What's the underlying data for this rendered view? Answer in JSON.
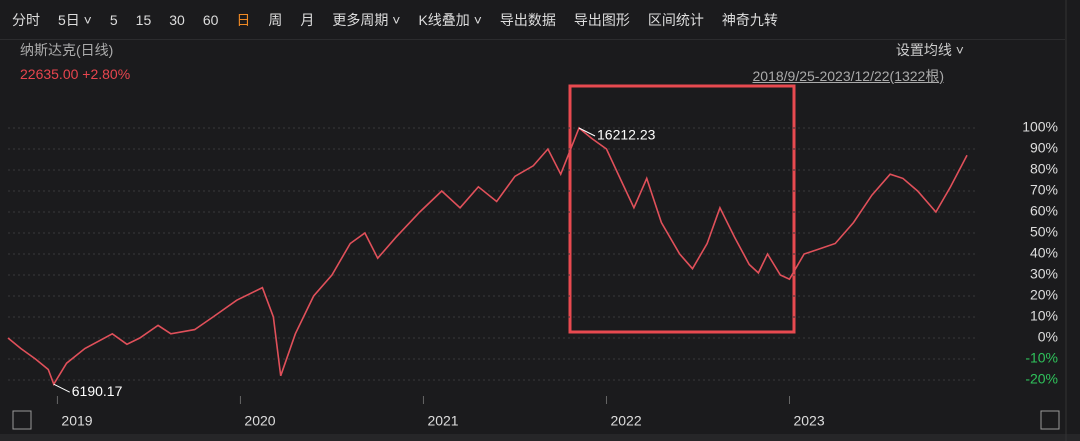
{
  "toolbar": {
    "items": [
      "分时",
      "5日 ˅",
      "5",
      "15",
      "30",
      "60",
      "日",
      "周",
      "月",
      "更多周期 ˅",
      "K线叠加 ˅",
      "导出数据",
      "导出图形",
      "区间统计",
      "神奇九转"
    ],
    "active": 6
  },
  "header": {
    "name": "纳斯达克(日线)",
    "quote": "22635.00 +2.80%",
    "ma_setting": "设置均线 ˅",
    "range": "2018/9/25-2023/12/22(1322根)"
  },
  "chart_data": {
    "type": "line",
    "x": [
      2018.73,
      2018.8,
      2018.88,
      2018.95,
      2018.98,
      2019.05,
      2019.15,
      2019.3,
      2019.38,
      2019.45,
      2019.55,
      2019.62,
      2019.75,
      2019.85,
      2019.98,
      2020.12,
      2020.18,
      2020.22,
      2020.3,
      2020.4,
      2020.5,
      2020.6,
      2020.68,
      2020.75,
      2020.85,
      2020.98,
      2021.1,
      2021.2,
      2021.3,
      2021.4,
      2021.5,
      2021.6,
      2021.68,
      2021.75,
      2021.85,
      2021.92,
      2022.0,
      2022.08,
      2022.15,
      2022.22,
      2022.3,
      2022.4,
      2022.47,
      2022.55,
      2022.62,
      2022.7,
      2022.78,
      2022.83,
      2022.88,
      2022.95,
      2023.0,
      2023.08,
      2023.15,
      2023.25,
      2023.35,
      2023.45,
      2023.55,
      2023.62,
      2023.7,
      2023.8,
      2023.88,
      2023.97
    ],
    "series": [
      {
        "name": "纳斯达克",
        "color": "#e0505a",
        "values": [
          0,
          -5,
          -10,
          -15,
          -22,
          -12,
          -5,
          2,
          -3,
          0,
          6,
          2,
          4,
          10,
          18,
          24,
          10,
          -18,
          2,
          20,
          30,
          45,
          50,
          38,
          48,
          60,
          70,
          62,
          72,
          65,
          77,
          82,
          90,
          78,
          100,
          95,
          90,
          75,
          62,
          76,
          55,
          40,
          33,
          45,
          62,
          48,
          35,
          31,
          40,
          30,
          28,
          40,
          42,
          45,
          55,
          68,
          78,
          76,
          70,
          60,
          72,
          87
        ]
      }
    ],
    "xlim": [
      2018.73,
      2024.03
    ],
    "xticks": [
      2019,
      2020,
      2021,
      2022,
      2023
    ],
    "ylim": [
      -20,
      100
    ],
    "yticks": [
      {
        "value": 100,
        "label": "100%"
      },
      {
        "value": 90,
        "label": "90%"
      },
      {
        "value": 80,
        "label": "80%"
      },
      {
        "value": 70,
        "label": "70%"
      },
      {
        "value": 60,
        "label": "60%"
      },
      {
        "value": 50,
        "label": "50%"
      },
      {
        "value": 40,
        "label": "40%"
      },
      {
        "value": 30,
        "label": "30%"
      },
      {
        "value": 20,
        "label": "20%"
      },
      {
        "value": 10,
        "label": "10%"
      },
      {
        "value": 0,
        "label": "0%"
      },
      {
        "value": -10,
        "label": "-10%"
      },
      {
        "value": -20,
        "label": "-20%"
      }
    ],
    "grid": true,
    "annotations": [
      {
        "label": "16212.23",
        "x": 2021.85,
        "y": 100
      },
      {
        "label": "6190.17",
        "x": 2018.98,
        "y": -22
      }
    ]
  }
}
